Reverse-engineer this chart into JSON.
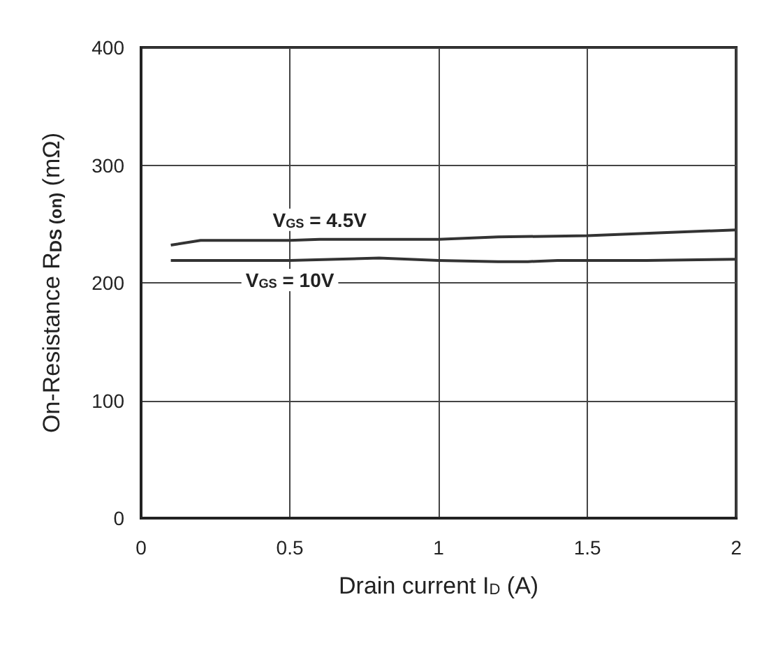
{
  "chart_data": {
    "type": "line",
    "xlabel": "Drain current I$_{D}$ (A)",
    "ylabel": "On-Resistance R$_{DS (on)}$ (mΩ)",
    "series": [
      {
        "name": "V$_{GS}$ = 4.5V",
        "color": "#333333",
        "x": [
          0.1,
          0.2,
          0.5,
          0.6,
          1.0,
          1.2,
          1.5,
          2.0
        ],
        "values": [
          232,
          236,
          236,
          237,
          237,
          239,
          240,
          245
        ]
      },
      {
        "name": "V$_{GS}$ = 10V",
        "color": "#333333",
        "x": [
          0.1,
          0.5,
          0.8,
          1.0,
          1.2,
          1.3,
          1.4,
          1.7,
          2.0
        ],
        "values": [
          219,
          219,
          221,
          219,
          218,
          218,
          219,
          219,
          220
        ]
      }
    ],
    "xlim": [
      0,
      2
    ],
    "xticks": [
      0,
      0.5,
      1,
      1.5,
      2
    ],
    "ylim": [
      0,
      400
    ],
    "yticks": [
      0,
      100,
      200,
      300,
      400
    ],
    "grid": true,
    "legend": false,
    "marker": "none",
    "line_style": "solid"
  }
}
